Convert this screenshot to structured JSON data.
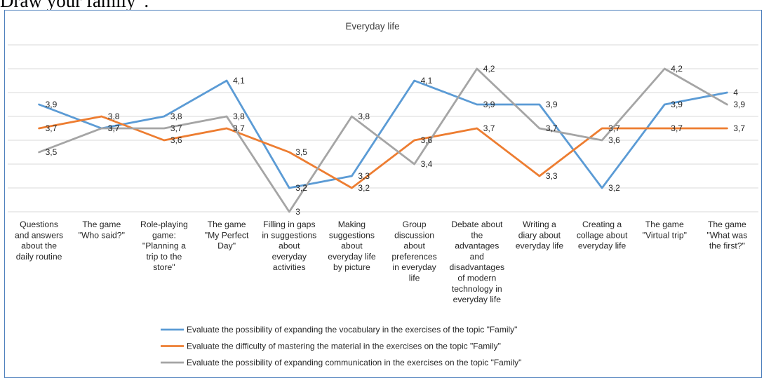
{
  "document": {
    "text": "Draw your family”."
  },
  "chart_data": {
    "type": "line",
    "title": "Everyday life",
    "categories": [
      [
        "Questions",
        "and answers",
        "about the",
        "daily routine"
      ],
      [
        "The game",
        "\"Who said?\""
      ],
      [
        "Role-playing",
        "game:",
        "\"Planning a",
        "trip to the",
        "store\""
      ],
      [
        "The game",
        "\"My Perfect",
        "Day\""
      ],
      [
        "Filling in gaps",
        "in suggestions",
        "about",
        "everyday",
        "activities"
      ],
      [
        "Making",
        "suggestions",
        "about",
        "everyday life",
        "by picture"
      ],
      [
        "Group",
        "discussion",
        "about",
        "preferences",
        "in everyday",
        "life"
      ],
      [
        "Debate about",
        "the",
        "advantages",
        "and",
        "disadvantages",
        "of modern",
        "technology in",
        "everyday life"
      ],
      [
        "Writing a",
        "diary about",
        "everyday life"
      ],
      [
        "Creating a",
        "collage about",
        "everyday life"
      ],
      [
        "The game",
        "\"Virtual trip\""
      ],
      [
        "The game",
        "\"What was",
        "the first?\""
      ]
    ],
    "series": [
      {
        "name": "Evaluate the possibility of expanding the vocabulary in the exercises of the topic \"Family\"",
        "color": "#5b9bd5",
        "values": [
          3.9,
          3.7,
          3.8,
          4.1,
          3.2,
          3.3,
          4.1,
          3.9,
          3.9,
          3.2,
          3.9,
          4.0
        ],
        "labels": [
          "3,9",
          "3,7",
          "3,8",
          "4,1",
          "3,2",
          "3,3",
          "4,1",
          "3,9",
          "3,9",
          "3,2",
          "3,9",
          "4"
        ]
      },
      {
        "name": "Evaluate the difficulty of mastering the material in the exercises on the topic \"Family\"",
        "color": "#ed7d31",
        "values": [
          3.7,
          3.8,
          3.6,
          3.7,
          3.5,
          3.2,
          3.6,
          3.7,
          3.3,
          3.7,
          3.7,
          3.7
        ],
        "labels": [
          "3,7",
          "3,8",
          "3,6",
          "3,7",
          "3,5",
          "3,2",
          "3,6",
          "3,7",
          "3,3",
          "3,7",
          "3,7",
          "3,7"
        ]
      },
      {
        "name": "Evaluate the possibility of expanding communication in the exercises on the topic \"Family\"",
        "color": "#a5a5a5",
        "values": [
          3.5,
          3.7,
          3.7,
          3.8,
          3.0,
          3.8,
          3.4,
          4.2,
          3.7,
          3.6,
          4.2,
          3.9
        ],
        "labels": [
          "3,5",
          "3,7",
          "3,7",
          "3,8",
          "3",
          "3,8",
          "3,4",
          "4,2",
          "3,7",
          "3,6",
          "4,2",
          "3,9"
        ]
      }
    ],
    "ylim": [
      3.0,
      4.4
    ],
    "y_gridlines": [
      3.0,
      3.2,
      3.4,
      3.6,
      3.8,
      4.0,
      4.2,
      4.4
    ],
    "grid": true,
    "legend": "bottom"
  }
}
